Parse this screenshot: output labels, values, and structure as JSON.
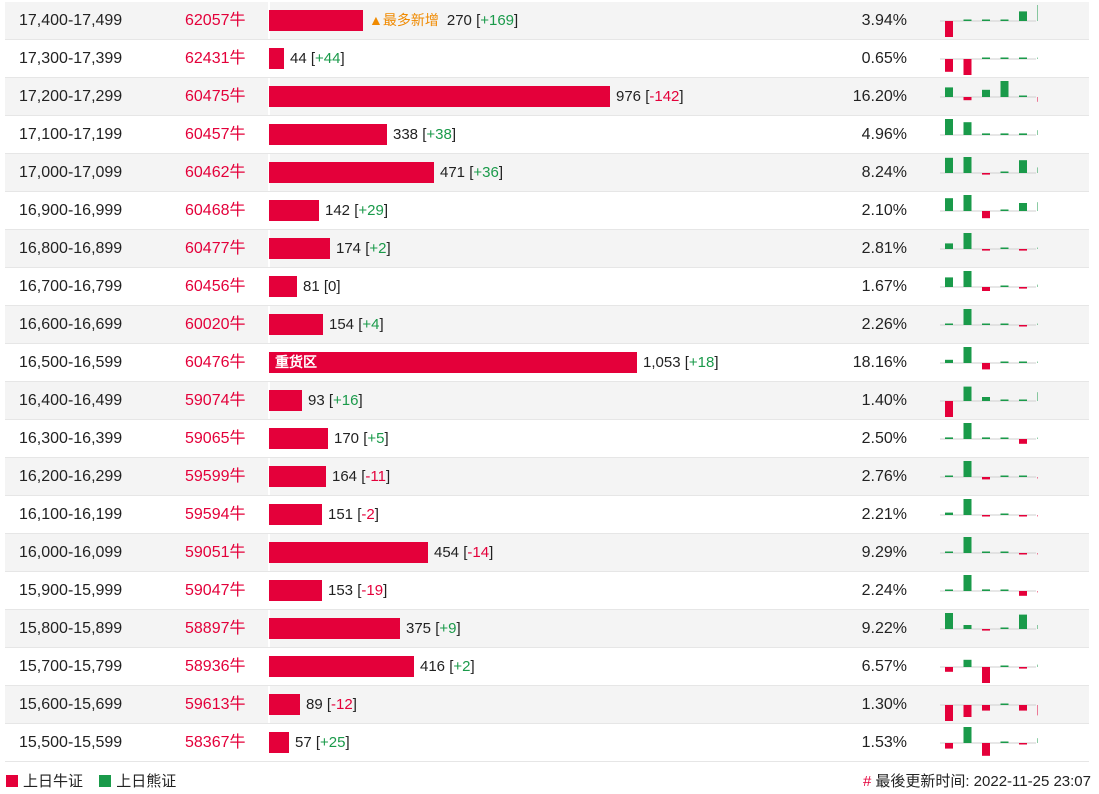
{
  "colors": {
    "bull": "#e4003a",
    "bear": "#1a9a4a",
    "accent": "#f08a00"
  },
  "max_count": 1053,
  "rows": [
    {
      "range": "17,400-17,499",
      "code": "62057牛",
      "count": "270",
      "change": "+169",
      "pct": "3.94%",
      "tag": "▲最多新增",
      "spark": [
        -1,
        0,
        0,
        0,
        0.6,
        1
      ]
    },
    {
      "range": "17,300-17,399",
      "code": "62431牛",
      "count": "44",
      "change": "+44",
      "pct": "0.65%",
      "spark": [
        -0.8,
        -1,
        0,
        0,
        0,
        0.05
      ]
    },
    {
      "range": "17,200-17,299",
      "code": "60475牛",
      "count": "976",
      "change": "-142",
      "pct": "16.20%",
      "spark": [
        0.6,
        -0.2,
        0.45,
        1,
        0,
        -0.3
      ]
    },
    {
      "range": "17,100-17,199",
      "code": "60457牛",
      "count": "338",
      "change": "+38",
      "pct": "4.96%",
      "spark": [
        1,
        0.8,
        0.1,
        0.1,
        0.1,
        0.3
      ]
    },
    {
      "range": "17,000-17,099",
      "code": "60462牛",
      "count": "471",
      "change": "+36",
      "pct": "8.24%",
      "spark": [
        0.95,
        1,
        -0.1,
        0,
        0.8,
        0.35
      ]
    },
    {
      "range": "16,900-16,999",
      "code": "60468牛",
      "count": "142",
      "change": "+29",
      "pct": "2.10%",
      "spark": [
        0.8,
        1,
        -0.45,
        0,
        0.5,
        0.55
      ]
    },
    {
      "range": "16,800-16,899",
      "code": "60477牛",
      "count": "174",
      "change": "+2",
      "pct": "2.81%",
      "spark": [
        0.35,
        1,
        -0.1,
        0,
        -0.1,
        0
      ]
    },
    {
      "range": "16,700-16,799",
      "code": "60456牛",
      "count": "81",
      "change": "0",
      "pct": "1.67%",
      "spark": [
        0.6,
        1,
        -0.25,
        0,
        -0.1,
        0.15
      ]
    },
    {
      "range": "16,600-16,699",
      "code": "60020牛",
      "count": "154",
      "change": "+4",
      "pct": "2.26%",
      "spark": [
        0.05,
        1,
        0.05,
        0,
        -0.05,
        0.05
      ]
    },
    {
      "range": "16,500-16,599",
      "code": "60476牛",
      "count": "1,053",
      "change": "+18",
      "pct": "18.16%",
      "tag": "重货区",
      "spark": [
        0.2,
        1,
        -0.4,
        0,
        0,
        0.05
      ]
    },
    {
      "range": "16,400-16,499",
      "code": "59074牛",
      "count": "93",
      "change": "+16",
      "pct": "1.40%",
      "spark": [
        -1,
        0.9,
        0.25,
        0,
        0.05,
        0.55
      ]
    },
    {
      "range": "16,300-16,399",
      "code": "59065牛",
      "count": "170",
      "change": "+5",
      "pct": "2.50%",
      "spark": [
        0.1,
        1,
        0.1,
        0,
        -0.3,
        0.05
      ]
    },
    {
      "range": "16,200-16,299",
      "code": "59599牛",
      "count": "164",
      "change": "-11",
      "pct": "2.76%",
      "spark": [
        0,
        1,
        -0.15,
        0,
        0.05,
        -0.1
      ]
    },
    {
      "range": "16,100-16,199",
      "code": "59594牛",
      "count": "151",
      "change": "-2",
      "pct": "2.21%",
      "spark": [
        0.15,
        1,
        -0.05,
        0,
        -0.05,
        -0.05
      ]
    },
    {
      "range": "16,000-16,099",
      "code": "59051牛",
      "count": "454",
      "change": "-14",
      "pct": "9.29%",
      "spark": [
        0.05,
        1,
        0.05,
        0,
        -0.05,
        -0.05
      ]
    },
    {
      "range": "15,900-15,999",
      "code": "59047牛",
      "count": "153",
      "change": "-19",
      "pct": "2.24%",
      "spark": [
        0.05,
        1,
        0.1,
        0,
        -0.3,
        -0.05
      ]
    },
    {
      "range": "15,800-15,899",
      "code": "58897牛",
      "count": "375",
      "change": "+9",
      "pct": "9.22%",
      "spark": [
        1,
        0.25,
        -0.1,
        0,
        0.9,
        0.25
      ]
    },
    {
      "range": "15,700-15,799",
      "code": "58936牛",
      "count": "416",
      "change": "+2",
      "pct": "6.57%",
      "spark": [
        -0.3,
        0.45,
        -1,
        0,
        -0.1,
        0.15
      ]
    },
    {
      "range": "15,600-15,699",
      "code": "59613牛",
      "count": "89",
      "change": "-12",
      "pct": "1.30%",
      "spark": [
        -1,
        -0.75,
        -0.35,
        0,
        -0.35,
        -0.65
      ]
    },
    {
      "range": "15,500-15,599",
      "code": "58367牛",
      "count": "57",
      "change": "+25",
      "pct": "1.53%",
      "spark": [
        -0.35,
        1,
        -0.8,
        0,
        -0.05,
        0.3
      ]
    }
  ],
  "legend": {
    "bull_label": "上日牛证",
    "bear_label": "上日熊证"
  },
  "updated": {
    "hash": "#",
    "label": "最後更新时间:",
    "time": "2022-11-25 23:07"
  }
}
